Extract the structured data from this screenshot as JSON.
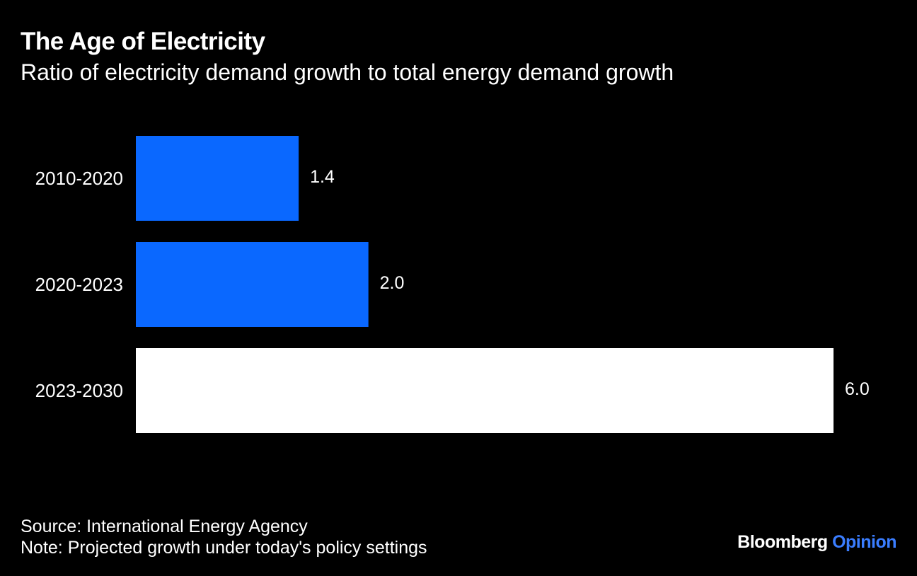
{
  "title": "The Age of Electricity",
  "subtitle": "Ratio of electricity demand growth to total energy demand growth",
  "chart_data": {
    "type": "bar",
    "orientation": "horizontal",
    "categories": [
      "2010-2020",
      "2020-2023",
      "2023-2030"
    ],
    "values": [
      1.4,
      2.0,
      6.0
    ],
    "value_labels": [
      "1.4",
      "2.0",
      "6.0"
    ],
    "bar_colors": [
      "#0a68ff",
      "#0a68ff",
      "#ffffff"
    ],
    "xlim": [
      0,
      6.0
    ],
    "grid": false,
    "legend": "none"
  },
  "footer": {
    "source": "Source: International Energy Agency",
    "note": "Note: Projected growth under today's policy settings"
  },
  "brand": {
    "name": "Bloomberg",
    "suffix": "Opinion"
  },
  "colors": {
    "background": "#000000",
    "text": "#ffffff",
    "accent": "#0a68ff",
    "brand_accent": "#3a7dff"
  }
}
